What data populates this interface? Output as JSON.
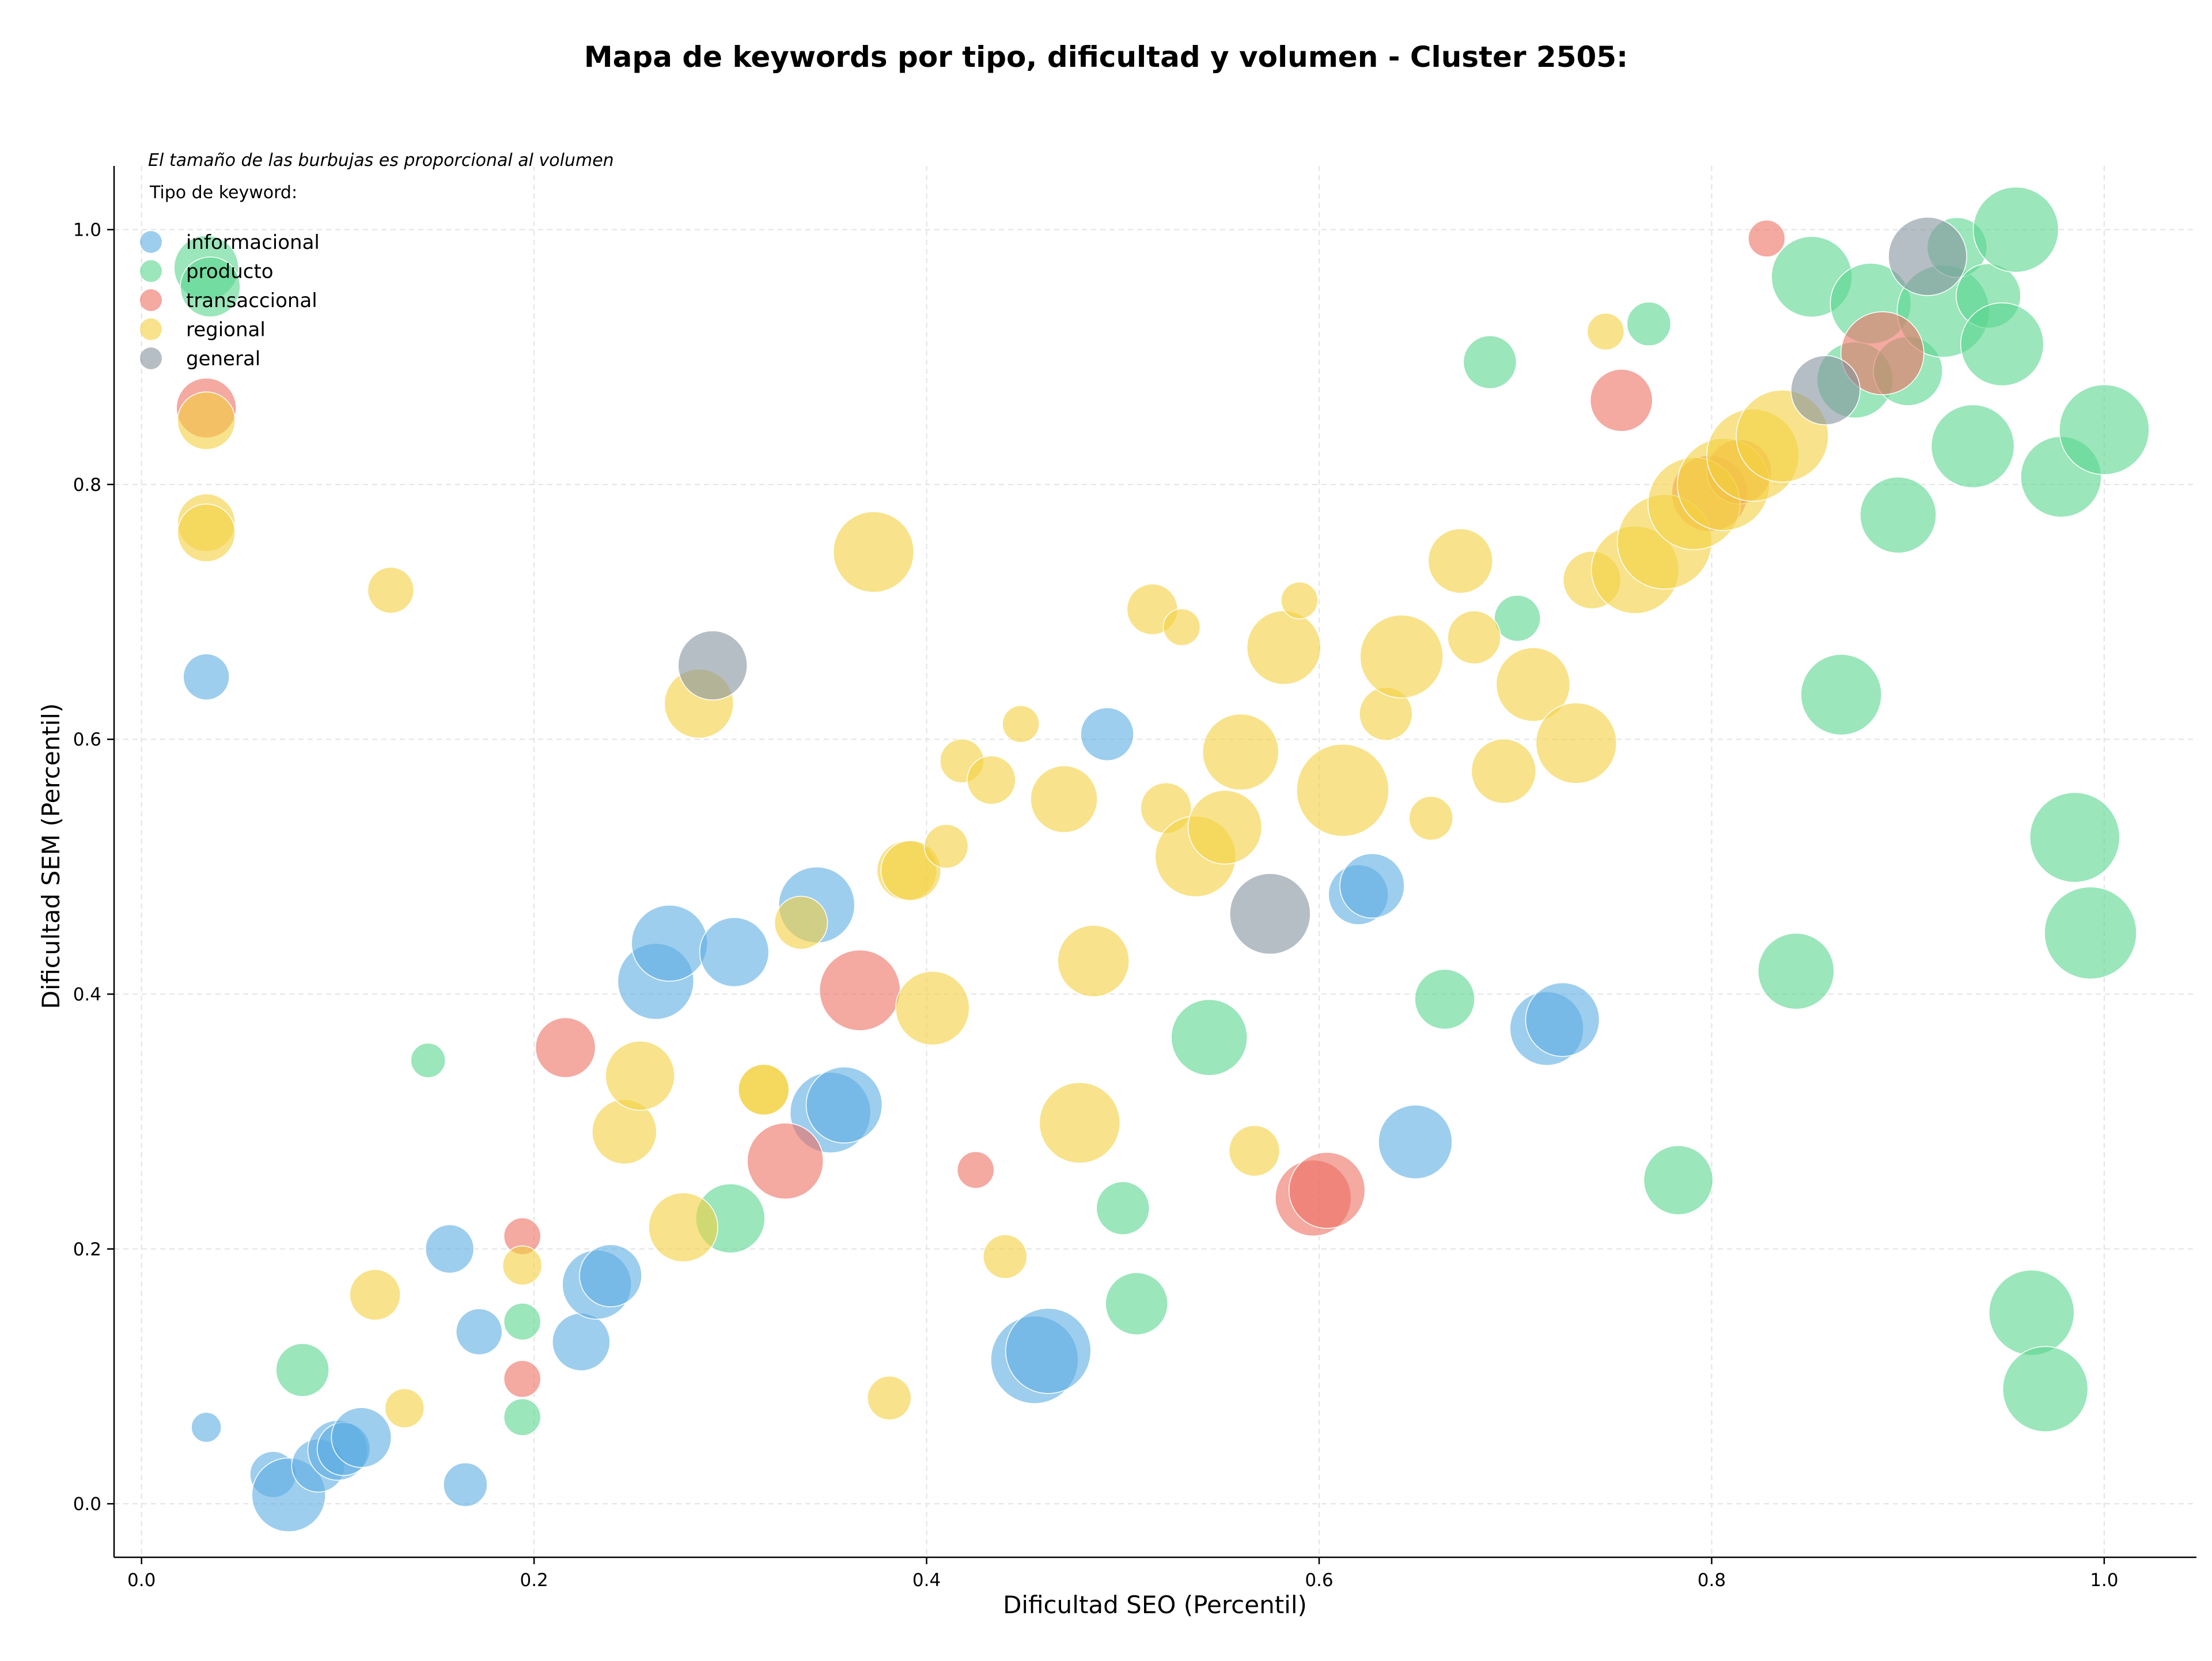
{
  "chart_data": {
    "type": "scatter",
    "title": "Mapa de keywords por tipo, dificultad y volumen - Cluster 2505:",
    "xlabel": "Dificultad SEO (Percentil)",
    "ylabel": "Dificultad SEM (Percentil)",
    "xlim": [
      -0.014,
      1.047
    ],
    "ylim": [
      -0.042,
      1.05
    ],
    "xticks": [
      0.0,
      0.2,
      0.4,
      0.6,
      0.8,
      1.0
    ],
    "yticks": [
      0.0,
      0.2,
      0.4,
      0.6,
      0.8,
      1.0
    ],
    "xtick_labels": [
      "0.0",
      "0.2",
      "0.4",
      "0.6",
      "0.8",
      "1.0"
    ],
    "ytick_labels": [
      "0.0",
      "0.2",
      "0.4",
      "0.6",
      "0.8",
      "1.0"
    ],
    "grid": true,
    "annotation": "El tamaño de las burbujas es proporcional al volumen",
    "legend_title": "Tipo de keyword:",
    "legend_position": "top-left",
    "series": [
      {
        "name": "informacional",
        "color": "#5dade2",
        "points": [
          [
            0.033,
            0.649,
            2.0
          ],
          [
            0.033,
            0.06,
            1.3
          ],
          [
            0.067,
            0.023,
            2.0
          ],
          [
            0.075,
            0.007,
            3.2
          ],
          [
            0.09,
            0.03,
            2.3
          ],
          [
            0.1,
            0.042,
            2.6
          ],
          [
            0.103,
            0.043,
            2.3
          ],
          [
            0.112,
            0.052,
            2.6
          ],
          [
            0.157,
            0.2,
            2.1
          ],
          [
            0.165,
            0.015,
            1.9
          ],
          [
            0.172,
            0.135,
            2.0
          ],
          [
            0.224,
            0.127,
            2.5
          ],
          [
            0.232,
            0.172,
            3.0
          ],
          [
            0.239,
            0.179,
            2.7
          ],
          [
            0.262,
            0.41,
            3.3
          ],
          [
            0.269,
            0.44,
            3.3
          ],
          [
            0.302,
            0.433,
            3.0
          ],
          [
            0.344,
            0.47,
            3.3
          ],
          [
            0.351,
            0.307,
            3.5
          ],
          [
            0.358,
            0.313,
            3.3
          ],
          [
            0.455,
            0.113,
            3.8
          ],
          [
            0.462,
            0.12,
            3.7
          ],
          [
            0.492,
            0.604,
            2.3
          ],
          [
            0.62,
            0.478,
            2.6
          ],
          [
            0.627,
            0.485,
            2.8
          ],
          [
            0.649,
            0.284,
            3.2
          ],
          [
            0.716,
            0.373,
            3.2
          ],
          [
            0.724,
            0.38,
            3.2
          ]
        ]
      },
      {
        "name": "producto",
        "color": "#58d68d",
        "points": [
          [
            0.033,
            0.97,
            2.8
          ],
          [
            0.035,
            0.955,
            2.6
          ],
          [
            0.082,
            0.105,
            2.3
          ],
          [
            0.146,
            0.348,
            1.5
          ],
          [
            0.194,
            0.143,
            1.6
          ],
          [
            0.194,
            0.068,
            1.6
          ],
          [
            0.3,
            0.224,
            3.0
          ],
          [
            0.5,
            0.232,
            2.3
          ],
          [
            0.507,
            0.157,
            2.7
          ],
          [
            0.544,
            0.366,
            3.3
          ],
          [
            0.664,
            0.396,
            2.6
          ],
          [
            0.687,
            0.896,
            2.3
          ],
          [
            0.701,
            0.695,
            2.0
          ],
          [
            0.768,
            0.926,
            1.9
          ],
          [
            0.783,
            0.254,
            3.0
          ],
          [
            0.843,
            0.418,
            3.3
          ],
          [
            0.851,
            0.963,
            3.5
          ],
          [
            0.866,
            0.635,
            3.5
          ],
          [
            0.873,
            0.882,
            3.3
          ],
          [
            0.881,
            0.942,
            3.5
          ],
          [
            0.895,
            0.776,
            3.3
          ],
          [
            0.9,
            0.889,
            3.0
          ],
          [
            0.918,
            0.936,
            4.0
          ],
          [
            0.925,
            0.986,
            2.6
          ],
          [
            0.933,
            0.83,
            3.6
          ],
          [
            0.941,
            0.948,
            2.8
          ],
          [
            0.948,
            0.91,
            3.6
          ],
          [
            0.955,
            1.0,
            3.7
          ],
          [
            0.963,
            0.15,
            3.7
          ],
          [
            0.97,
            0.09,
            3.7
          ],
          [
            0.978,
            0.806,
            3.5
          ],
          [
            0.985,
            0.523,
            3.9
          ],
          [
            0.993,
            0.448,
            4.0
          ],
          [
            1.0,
            0.843,
            3.9
          ]
        ]
      },
      {
        "name": "transaccional",
        "color": "#ec7063",
        "points": [
          [
            0.033,
            0.86,
            2.6
          ],
          [
            0.194,
            0.21,
            1.6
          ],
          [
            0.194,
            0.098,
            1.6
          ],
          [
            0.216,
            0.358,
            2.6
          ],
          [
            0.328,
            0.269,
            3.3
          ],
          [
            0.366,
            0.403,
            3.5
          ],
          [
            0.425,
            0.262,
            1.6
          ],
          [
            0.597,
            0.24,
            3.3
          ],
          [
            0.604,
            0.246,
            3.3
          ],
          [
            0.754,
            0.866,
            2.7
          ],
          [
            0.799,
            0.793,
            3.3
          ],
          [
            0.814,
            0.81,
            2.8
          ],
          [
            0.828,
            0.993,
            1.6
          ],
          [
            0.887,
            0.903,
            3.6
          ]
        ]
      },
      {
        "name": "regional",
        "color": "#f4d03f",
        "points": [
          [
            0.033,
            0.85,
            2.5
          ],
          [
            0.033,
            0.77,
            2.5
          ],
          [
            0.033,
            0.762,
            2.5
          ],
          [
            0.119,
            0.164,
            2.2
          ],
          [
            0.127,
            0.717,
            2.0
          ],
          [
            0.134,
            0.075,
            1.7
          ],
          [
            0.194,
            0.187,
            1.7
          ],
          [
            0.246,
            0.292,
            2.8
          ],
          [
            0.254,
            0.336,
            3.0
          ],
          [
            0.276,
            0.217,
            3.0
          ],
          [
            0.284,
            0.628,
            3.0
          ],
          [
            0.317,
            0.325,
            2.2
          ],
          [
            0.317,
            0.325,
            2.2
          ],
          [
            0.336,
            0.456,
            2.3
          ],
          [
            0.373,
            0.747,
            3.5
          ],
          [
            0.381,
            0.083,
            1.9
          ],
          [
            0.39,
            0.497,
            2.6
          ],
          [
            0.392,
            0.497,
            2.6
          ],
          [
            0.403,
            0.389,
            3.2
          ],
          [
            0.41,
            0.516,
            1.9
          ],
          [
            0.418,
            0.583,
            1.9
          ],
          [
            0.433,
            0.568,
            2.1
          ],
          [
            0.44,
            0.194,
            1.9
          ],
          [
            0.448,
            0.612,
            1.6
          ],
          [
            0.47,
            0.553,
            2.9
          ],
          [
            0.478,
            0.299,
            3.5
          ],
          [
            0.485,
            0.426,
            3.1
          ],
          [
            0.515,
            0.702,
            2.2
          ],
          [
            0.522,
            0.546,
            2.2
          ],
          [
            0.53,
            0.688,
            1.6
          ],
          [
            0.537,
            0.508,
            3.5
          ],
          [
            0.552,
            0.531,
            3.2
          ],
          [
            0.56,
            0.59,
            3.3
          ],
          [
            0.567,
            0.277,
            2.2
          ],
          [
            0.582,
            0.672,
            3.2
          ],
          [
            0.59,
            0.709,
            1.6
          ],
          [
            0.612,
            0.56,
            4.0
          ],
          [
            0.634,
            0.62,
            2.3
          ],
          [
            0.642,
            0.665,
            3.6
          ],
          [
            0.657,
            0.538,
            1.9
          ],
          [
            0.672,
            0.74,
            2.8
          ],
          [
            0.679,
            0.68,
            2.3
          ],
          [
            0.694,
            0.575,
            2.8
          ],
          [
            0.709,
            0.643,
            3.2
          ],
          [
            0.731,
            0.597,
            3.5
          ],
          [
            0.739,
            0.725,
            2.5
          ],
          [
            0.746,
            0.92,
            1.6
          ],
          [
            0.761,
            0.733,
            3.8
          ],
          [
            0.776,
            0.755,
            4.1
          ],
          [
            0.791,
            0.785,
            4.0
          ],
          [
            0.806,
            0.8,
            4.0
          ],
          [
            0.821,
            0.823,
            4.0
          ],
          [
            0.836,
            0.838,
            4.0
          ]
        ]
      },
      {
        "name": "general",
        "color": "#85929e",
        "points": [
          [
            0.291,
            0.658,
            3.0
          ],
          [
            0.575,
            0.463,
            3.5
          ],
          [
            0.858,
            0.874,
            3.0
          ],
          [
            0.91,
            0.979,
            3.4
          ]
        ]
      }
    ]
  }
}
